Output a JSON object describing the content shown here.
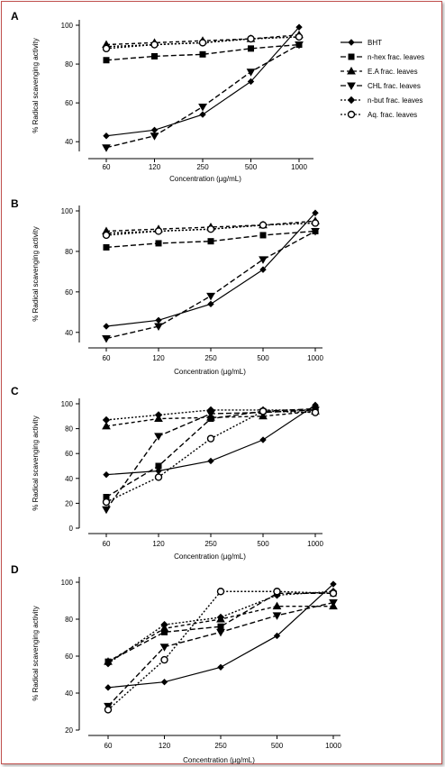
{
  "chart_data": [
    {
      "panel": "A",
      "type": "line",
      "xlabel": "Concentration (µg/mL)",
      "ylabel": "% Radical scavenging activity",
      "categories": [
        "60",
        "120",
        "250",
        "500",
        "1000"
      ],
      "ylim": [
        35,
        100
      ],
      "yticks": [
        40,
        60,
        80,
        100
      ],
      "series": [
        {
          "name": "BHT",
          "values": [
            43,
            46,
            54,
            71,
            99
          ]
        },
        {
          "name": "n-hex frac. leaves",
          "values": [
            82,
            84,
            85,
            88,
            90
          ]
        },
        {
          "name": "E.A frac. leaves",
          "values": [
            90,
            91,
            92,
            93,
            95
          ]
        },
        {
          "name": "CHL frac. leaves",
          "values": [
            37,
            43,
            58,
            76,
            90
          ]
        },
        {
          "name": "n-but frac. leaves",
          "values": [
            89,
            90,
            91,
            93,
            94
          ]
        },
        {
          "name": "Aq. frac. leaves",
          "values": [
            88,
            90,
            91,
            93,
            94
          ]
        }
      ]
    },
    {
      "panel": "B",
      "type": "line",
      "xlabel": "Concentration (µg/mL)",
      "ylabel": "% Radical scavenging activity",
      "categories": [
        "60",
        "120",
        "250",
        "500",
        "1000"
      ],
      "ylim": [
        35,
        100
      ],
      "yticks": [
        40,
        60,
        80,
        100
      ],
      "series": [
        {
          "name": "BHT",
          "values": [
            43,
            46,
            54,
            71,
            99
          ]
        },
        {
          "name": "n-hex frac. leaves",
          "values": [
            82,
            84,
            85,
            88,
            90
          ]
        },
        {
          "name": "E.A frac. leaves",
          "values": [
            90,
            91,
            92,
            93,
            95
          ]
        },
        {
          "name": "CHL frac. leaves",
          "values": [
            37,
            43,
            58,
            76,
            90
          ]
        },
        {
          "name": "n-but frac. leaves",
          "values": [
            89,
            90,
            91,
            93,
            94
          ]
        },
        {
          "name": "Aq. frac. leaves",
          "values": [
            88,
            90,
            91,
            93,
            94
          ]
        }
      ]
    },
    {
      "panel": "C",
      "type": "line",
      "xlabel": "Concentration (µg/mL)",
      "ylabel": "% Radical scavenging activity",
      "categories": [
        "60",
        "120",
        "250",
        "500",
        "1000"
      ],
      "ylim": [
        0,
        100
      ],
      "yticks": [
        0,
        20,
        40,
        60,
        80,
        100
      ],
      "series": [
        {
          "name": "BHT",
          "values": [
            43,
            46,
            54,
            71,
            99
          ]
        },
        {
          "name": "n-hex frac. leaves",
          "values": [
            25,
            50,
            88,
            94,
            96
          ]
        },
        {
          "name": "E.A frac. leaves",
          "values": [
            82,
            88,
            89,
            90,
            94
          ]
        },
        {
          "name": "CHL frac. leaves",
          "values": [
            15,
            74,
            92,
            93,
            95
          ]
        },
        {
          "name": "n-but frac. leaves",
          "values": [
            87,
            91,
            95,
            95,
            95
          ]
        },
        {
          "name": "Aq. frac. leaves",
          "values": [
            21,
            41,
            72,
            94,
            93
          ]
        }
      ]
    },
    {
      "panel": "D",
      "type": "line",
      "xlabel": "Concentration (µg/mL)",
      "ylabel": "% Radical scavenging activity",
      "categories": [
        "60",
        "120",
        "250",
        "500",
        "1000"
      ],
      "ylim": [
        20,
        100
      ],
      "yticks": [
        20,
        40,
        60,
        80,
        100
      ],
      "series": [
        {
          "name": "BHT",
          "values": [
            43,
            46,
            54,
            71,
            99
          ]
        },
        {
          "name": "n-hex frac. leaves",
          "values": [
            57,
            73,
            76,
            94,
            94
          ]
        },
        {
          "name": "E.A frac. leaves",
          "values": [
            57,
            75,
            80,
            87,
            87
          ]
        },
        {
          "name": "CHL frac. leaves",
          "values": [
            33,
            65,
            73,
            82,
            89
          ]
        },
        {
          "name": "n-but frac. leaves",
          "values": [
            56,
            77,
            81,
            93,
            95
          ]
        },
        {
          "name": "Aq. frac. leaves",
          "values": [
            31,
            58,
            95,
            95,
            94
          ]
        }
      ]
    }
  ],
  "legend": {
    "placement": "top-right",
    "items": [
      {
        "label": "BHT",
        "marker": "diamond",
        "dash": "none"
      },
      {
        "label": "n-hex frac. leaves",
        "marker": "square",
        "dash": "6,3"
      },
      {
        "label": "E.A frac. leaves",
        "marker": "triangle-up",
        "dash": "4,3"
      },
      {
        "label": "CHL frac. leaves",
        "marker": "triangle-down",
        "dash": "6,3"
      },
      {
        "label": "n-but frac. leaves",
        "marker": "diamond-dot",
        "dash": "2,2"
      },
      {
        "label": "Aq. frac. leaves",
        "marker": "circle-open",
        "dash": "2,2"
      }
    ]
  }
}
